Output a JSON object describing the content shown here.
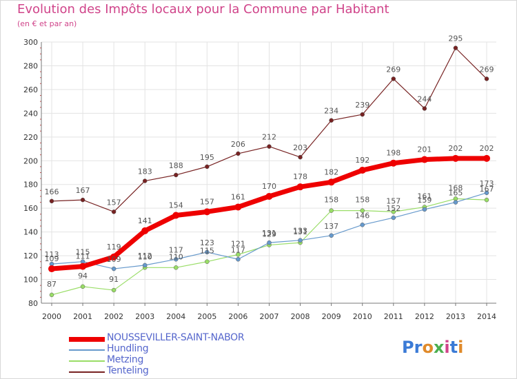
{
  "header": {
    "title": "Evolution des Impôts locaux pour la Commune par Habitant",
    "subtitle": "(en € et par an)"
  },
  "logo": {
    "text": "Proxiti",
    "colors": [
      "#3b7bd6",
      "#e08a2a",
      "#4caf50",
      "#d0448a"
    ]
  },
  "chart_data": {
    "type": "line",
    "title": "Evolution des Impôts locaux pour la Commune par Habitant",
    "subtitle": "(en € et par an)",
    "xlabel": "",
    "ylabel": "",
    "ylim": [
      80,
      300
    ],
    "yticks": [
      80,
      100,
      120,
      140,
      160,
      180,
      200,
      220,
      240,
      260,
      280,
      300
    ],
    "grid": true,
    "legend_position": "bottom-left",
    "categories": [
      "2000",
      "2001",
      "2002",
      "2003",
      "2004",
      "2005",
      "2006",
      "2007",
      "2008",
      "2009",
      "2010",
      "2011",
      "2012",
      "2013",
      "2014"
    ],
    "series": [
      {
        "name": "NOUSSEVILLER-SAINT-NABOR",
        "color": "#ee0000",
        "labels": [
          "109",
          "111",
          "119",
          "141",
          "154",
          "157",
          "161",
          "170",
          "178",
          "182",
          "192",
          "198",
          "201",
          "202",
          "202"
        ],
        "values": [
          109,
          111,
          119,
          141,
          154,
          157,
          161,
          170,
          178,
          182,
          192,
          198,
          201,
          202,
          202
        ]
      },
      {
        "name": "Hundling",
        "color": "#6699cc",
        "labels": [
          "113",
          "115",
          "109",
          "112",
          "117",
          "123",
          "117",
          "131",
          "133",
          "137",
          "146",
          "152",
          "159",
          "165",
          "173"
        ],
        "values": [
          113,
          115,
          109,
          112,
          117,
          123,
          117,
          131,
          133,
          137,
          146,
          152,
          159,
          165,
          173
        ]
      },
      {
        "name": "Metzing",
        "color": "#99dd66",
        "labels": [
          "87",
          "94",
          "91",
          "110",
          "110",
          "115",
          "121",
          "129",
          "131",
          "158",
          "158",
          "157",
          "161",
          "168",
          "167"
        ],
        "values": [
          87,
          94,
          91,
          110,
          110,
          115,
          121,
          129,
          131,
          158,
          158,
          157,
          161,
          168,
          167
        ]
      },
      {
        "name": "Tenteling",
        "color": "#772222",
        "labels": [
          "166",
          "167",
          "157",
          "183",
          "188",
          "195",
          "206",
          "212",
          "203",
          "234",
          "239",
          "269",
          "244",
          "295",
          "269"
        ],
        "values": [
          166,
          167,
          157,
          183,
          188,
          195,
          206,
          212,
          203,
          234,
          239,
          269,
          244,
          295,
          269
        ]
      }
    ]
  }
}
